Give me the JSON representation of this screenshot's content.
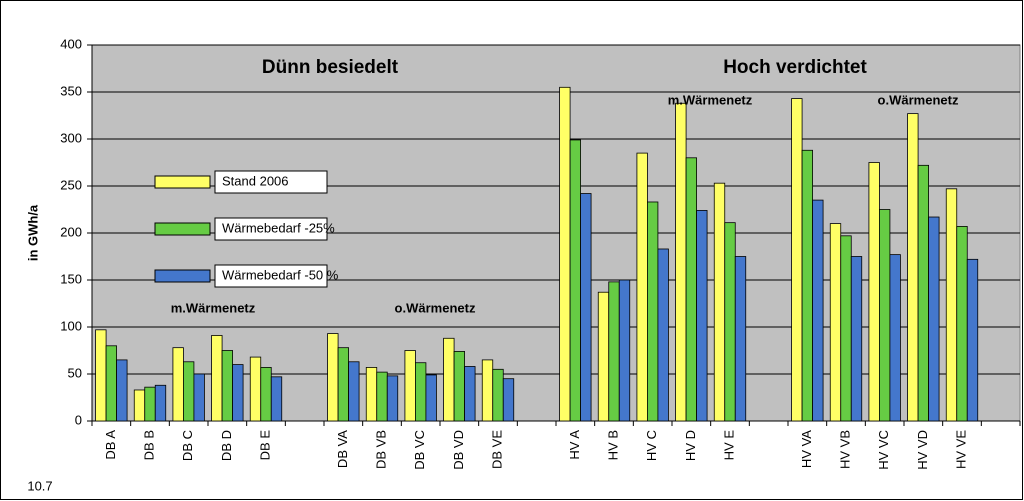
{
  "chart_data": {
    "type": "bar",
    "y_label": "in GWh/a",
    "annotations": [
      "Dünn besiedelt",
      "Hoch verdichtet",
      "m.Wärmenetz",
      "o.Wärmenetz",
      "m.Wärmenetz",
      "o.Wärmenetz",
      "10.7"
    ],
    "categories": [
      "DB A",
      "DB B",
      "DB C",
      "DB D",
      "DB E",
      null,
      "DB VA",
      "DB VB",
      "DB VC",
      "DB VD",
      "DB VE",
      null,
      "HV A",
      "HV B",
      "HV C",
      "HV D",
      "HV E",
      null,
      "HV VA",
      "HV VB",
      "HV VC",
      "HV VD",
      "HV VE"
    ],
    "series": [
      {
        "name": "Stand 2006",
        "color": "#ffff66",
        "values": [
          97,
          33,
          78,
          91,
          68,
          null,
          93,
          57,
          75,
          88,
          65,
          null,
          355,
          137,
          285,
          338,
          253,
          null,
          343,
          210,
          275,
          327,
          247
        ]
      },
      {
        "name": "Wärmebedarf -25%",
        "color": "#66cc44",
        "values": [
          80,
          36,
          63,
          75,
          57,
          null,
          78,
          52,
          62,
          74,
          55,
          null,
          299,
          148,
          233,
          280,
          211,
          null,
          288,
          197,
          225,
          272,
          207
        ]
      },
      {
        "name": "Wärmebedarf -50 %",
        "color": "#4477cc",
        "values": [
          65,
          38,
          50,
          60,
          47,
          null,
          63,
          48,
          49,
          58,
          45,
          null,
          242,
          150,
          183,
          224,
          175,
          null,
          235,
          175,
          177,
          217,
          172
        ]
      }
    ],
    "ylim": [
      0,
      400
    ],
    "yticks": [
      0,
      50,
      100,
      150,
      200,
      250,
      300,
      350,
      400
    ],
    "grid": true,
    "plot_background": "#c0c0c0"
  }
}
